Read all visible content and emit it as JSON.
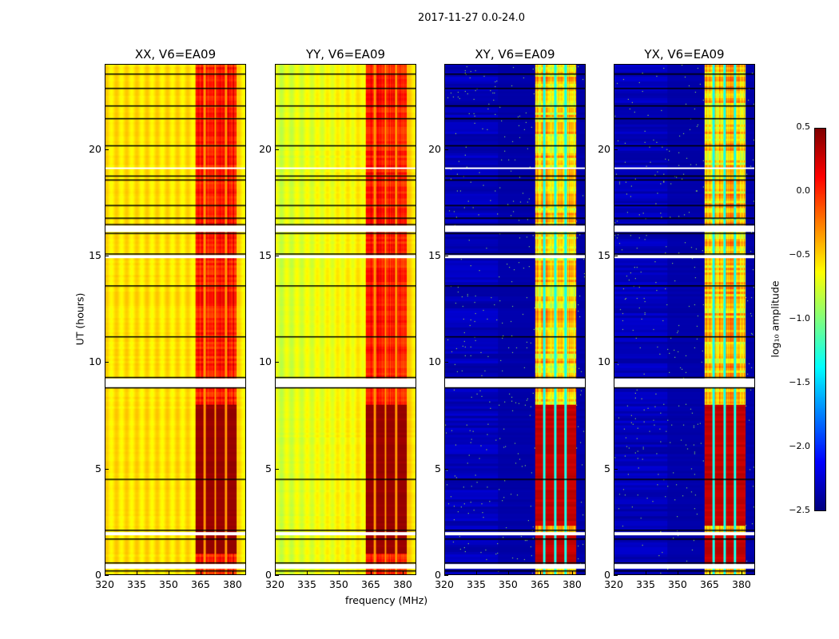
{
  "figure_title": "2017-11-27 0.0-24.0",
  "chart_data": {
    "type": "heatmap",
    "title": "2017-11-27 0.0-24.0",
    "xlabel": "frequency (MHz)",
    "ylabel": "UT (hours)",
    "xlim": [
      320,
      386.4
    ],
    "ylim": [
      0,
      24
    ],
    "xticks": [
      "320",
      "335",
      "350",
      "365",
      "380"
    ],
    "yticks": [
      "0",
      "5",
      "10",
      "15",
      "20"
    ],
    "panels": [
      {
        "title": "XX, V6=EA09",
        "kind": "auto",
        "base": -0.55,
        "band_level": 0.05,
        "high_level": 0.4
      },
      {
        "title": "YY, V6=EA09",
        "kind": "auto",
        "base": -0.6,
        "band_level": 0.05,
        "high_level": 0.4
      },
      {
        "title": "XY, V6=EA09",
        "kind": "cross",
        "base": -2.4,
        "band_level": -0.5,
        "high_level": 0.3
      },
      {
        "title": "YX, V6=EA09",
        "kind": "cross",
        "base": -2.4,
        "band_level": -0.5,
        "high_level": 0.3
      }
    ],
    "band_mhz": [
      362.5,
      382
    ],
    "spw_edges_mhz": [
      367,
      372,
      377
    ],
    "strong_period_ut": [
      0.5,
      8.0
    ],
    "flagged_ut": [
      [
        0.28,
        0.5
      ],
      [
        1.85,
        2.0
      ],
      [
        8.85,
        9.25
      ],
      [
        16.15,
        16.45
      ],
      [
        19.1,
        19.2
      ],
      [
        14.9,
        15.05
      ]
    ],
    "boundary_lines_ut": [
      0.2,
      0.55,
      1.7,
      2.1,
      4.5,
      8.8,
      9.3,
      11.2,
      13.6,
      15.1,
      16.1,
      16.5,
      16.8,
      17.4,
      18.6,
      18.8,
      20.2,
      21.5,
      22.1,
      22.9,
      23.6
    ],
    "colorbar": {
      "label": "log₁₀ amplitude",
      "range": [
        -2.5,
        0.5
      ],
      "ticks": [
        "0.5",
        "0.0",
        "−0.5",
        "−1.0",
        "−1.5",
        "−2.0",
        "−2.5"
      ],
      "colormap": "jet"
    }
  }
}
